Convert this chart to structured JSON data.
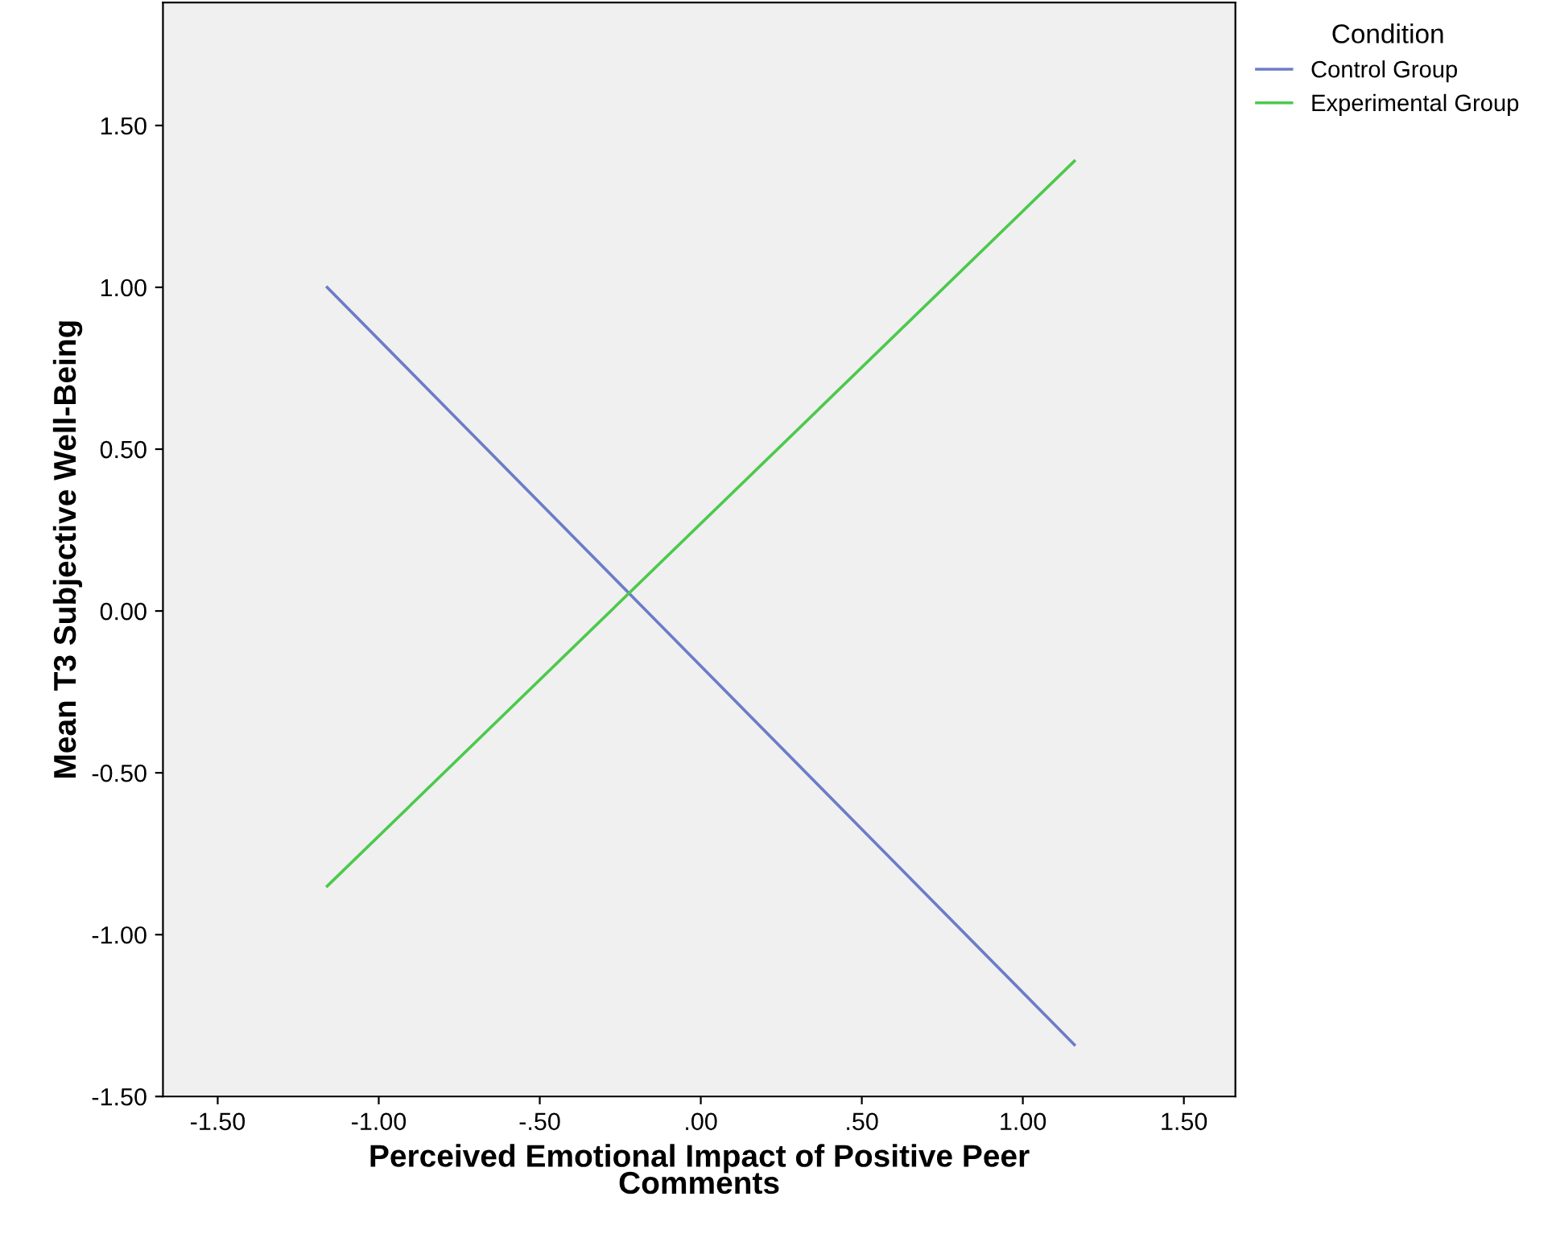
{
  "chart_data": {
    "type": "line",
    "xlabel": "Perceived Emotional Impact of Positive Peer\nComments",
    "ylabel": "Mean T3 Subjective Well-Being",
    "legend_title": "Condition",
    "legend": "top right",
    "grid": false,
    "marker": "none",
    "line_style": "solid",
    "x": [
      -1.16,
      1.16
    ],
    "xlim": [
      -1.67,
      1.66
    ],
    "ylim": [
      -1.5,
      1.88
    ],
    "xticks": [
      {
        "value": -1.5,
        "label": "-1.50"
      },
      {
        "value": -1.0,
        "label": "-1.00"
      },
      {
        "value": -0.5,
        "label": "-.50"
      },
      {
        "value": 0,
        "label": ".00"
      },
      {
        "value": 0.5,
        "label": ".50"
      },
      {
        "value": 1.0,
        "label": "1.00"
      },
      {
        "value": 1.5,
        "label": "1.50"
      }
    ],
    "yticks": [
      {
        "value": -1.5,
        "label": "-1.50"
      },
      {
        "value": -1.0,
        "label": "-1.00"
      },
      {
        "value": -0.5,
        "label": "-0.50"
      },
      {
        "value": 0,
        "label": "0.00"
      },
      {
        "value": 0.5,
        "label": "0.50"
      },
      {
        "value": 1.0,
        "label": "1.00"
      },
      {
        "value": 1.5,
        "label": "1.50"
      }
    ],
    "series": [
      {
        "name": "Control Group",
        "color": "#6c7cc8",
        "values": [
          1.0,
          -1.34
        ]
      },
      {
        "name": "Experimental Group",
        "color": "#4cc94c",
        "values": [
          -0.85,
          1.39
        ]
      }
    ]
  }
}
